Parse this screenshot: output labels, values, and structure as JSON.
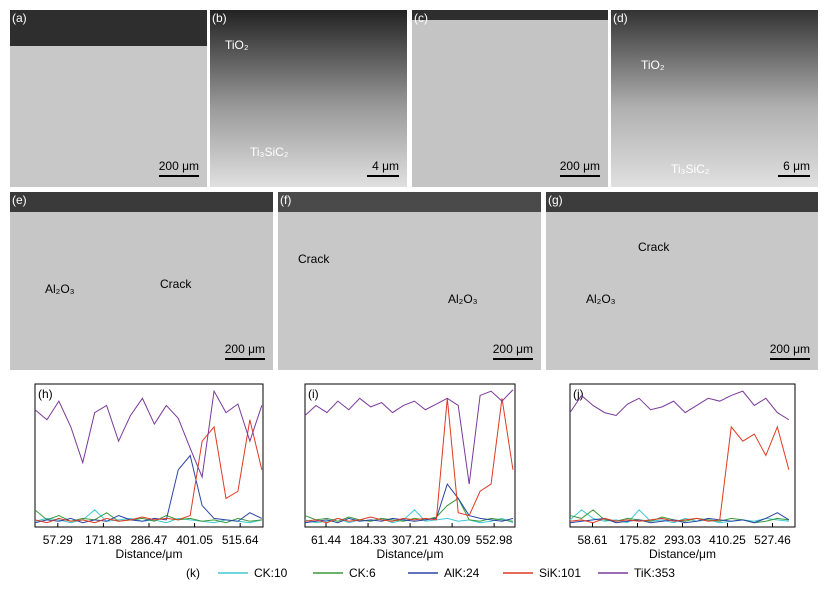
{
  "panels": [
    {
      "label": "(a)",
      "scale": "200 μm",
      "notes": []
    },
    {
      "label": "(b)",
      "scale": "4 μm",
      "notes": [
        "TiO₂",
        "Ti₃SiC₂"
      ]
    },
    {
      "label": "(c)",
      "scale": "200 μm",
      "notes": []
    },
    {
      "label": "(d)",
      "scale": "6 μm",
      "notes": [
        "TiO₂",
        "Ti₃SiC₂"
      ]
    },
    {
      "label": "(e)",
      "scale": "200 μm",
      "notes": [
        "Al₂O₃",
        "Crack"
      ]
    },
    {
      "label": "(f)",
      "scale": "200 μm",
      "notes": [
        "Crack",
        "Al₂O₃"
      ]
    },
    {
      "label": "(g)",
      "scale": "200 μm",
      "notes": [
        "Crack",
        "Al₂O₃"
      ]
    }
  ],
  "legend_label": "(k)",
  "chart_data": [
    {
      "type": "line",
      "title": "(h)",
      "xlabel": "Distance/μm",
      "xlim": [
        0,
        573
      ],
      "ylim": [
        0,
        100
      ],
      "xticks": [
        57.29,
        171.88,
        286.47,
        401.05,
        515.64
      ],
      "x": [
        0,
        30,
        60,
        90,
        120,
        150,
        180,
        210,
        240,
        270,
        300,
        330,
        360,
        390,
        420,
        450,
        480,
        510,
        540,
        570
      ],
      "series": [
        {
          "name": "CK:10",
          "color": "#3ec8d4",
          "values": [
            4,
            6,
            5,
            3,
            5,
            12,
            4,
            5,
            6,
            4,
            5,
            3,
            6,
            5,
            4,
            3,
            5,
            4,
            3,
            5
          ]
        },
        {
          "name": "CK:6",
          "color": "#3a9a3a",
          "values": [
            12,
            5,
            8,
            4,
            6,
            5,
            10,
            4,
            5,
            6,
            4,
            8,
            5,
            6,
            4,
            5,
            3,
            6,
            4,
            5
          ]
        },
        {
          "name": "AlK:24",
          "color": "#2a44a4",
          "values": [
            3,
            5,
            4,
            6,
            3,
            5,
            4,
            8,
            5,
            4,
            6,
            5,
            40,
            50,
            15,
            6,
            5,
            4,
            10,
            6
          ]
        },
        {
          "name": "SiK:101",
          "color": "#e03a22",
          "values": [
            5,
            3,
            6,
            4,
            5,
            3,
            6,
            4,
            5,
            7,
            5,
            6,
            5,
            8,
            60,
            70,
            20,
            25,
            75,
            40
          ]
        },
        {
          "name": "TiK:353",
          "color": "#7a3a9a",
          "values": [
            82,
            75,
            88,
            70,
            45,
            80,
            85,
            60,
            78,
            90,
            72,
            85,
            76,
            55,
            35,
            95,
            80,
            86,
            60,
            85
          ]
        }
      ]
    },
    {
      "type": "line",
      "title": "(i)",
      "xlabel": "Distance/μm",
      "xlim": [
        0,
        614
      ],
      "ylim": [
        0,
        100
      ],
      "xticks": [
        61.44,
        184.33,
        307.21,
        430.09,
        552.98
      ],
      "x": [
        0,
        32,
        64,
        96,
        128,
        160,
        192,
        224,
        256,
        288,
        320,
        352,
        384,
        416,
        448,
        480,
        512,
        544,
        576,
        608
      ],
      "series": [
        {
          "name": "CK:10",
          "color": "#3ec8d4",
          "values": [
            5,
            3,
            4,
            6,
            3,
            5,
            4,
            6,
            3,
            5,
            12,
            4,
            5,
            6,
            4,
            5,
            3,
            4,
            6,
            3
          ]
        },
        {
          "name": "CK:6",
          "color": "#3a9a3a",
          "values": [
            8,
            5,
            6,
            4,
            7,
            5,
            4,
            6,
            5,
            4,
            6,
            5,
            7,
            15,
            20,
            5,
            4,
            6,
            5,
            4
          ]
        },
        {
          "name": "AlK:24",
          "color": "#2a44a4",
          "values": [
            3,
            4,
            5,
            3,
            6,
            4,
            5,
            4,
            6,
            5,
            4,
            5,
            6,
            30,
            20,
            8,
            6,
            5,
            4,
            6
          ]
        },
        {
          "name": "SiK:101",
          "color": "#e03a22",
          "values": [
            4,
            5,
            3,
            6,
            4,
            5,
            7,
            5,
            4,
            6,
            5,
            6,
            5,
            90,
            10,
            8,
            25,
            30,
            90,
            40
          ]
        },
        {
          "name": "TiK:353",
          "color": "#7a3a9a",
          "values": [
            78,
            85,
            80,
            88,
            82,
            90,
            84,
            87,
            80,
            85,
            88,
            82,
            86,
            90,
            85,
            30,
            92,
            95,
            88,
            96
          ]
        }
      ]
    },
    {
      "type": "line",
      "title": "(j)",
      "xlabel": "Distance/μm",
      "xlim": [
        0,
        586
      ],
      "ylim": [
        0,
        100
      ],
      "xticks": [
        58.61,
        175.82,
        293.03,
        410.25,
        527.46
      ],
      "x": [
        0,
        30,
        60,
        90,
        120,
        150,
        180,
        210,
        240,
        270,
        300,
        330,
        360,
        390,
        420,
        450,
        480,
        510,
        540,
        570
      ],
      "series": [
        {
          "name": "CK:10",
          "color": "#3ec8d4",
          "values": [
            5,
            12,
            6,
            4,
            5,
            3,
            12,
            4,
            5,
            3,
            6,
            4,
            5,
            3,
            4,
            5,
            4,
            6,
            5,
            4
          ]
        },
        {
          "name": "CK:6",
          "color": "#3a9a3a",
          "values": [
            8,
            6,
            12,
            5,
            4,
            6,
            5,
            4,
            7,
            5,
            4,
            6,
            5,
            4,
            6,
            5,
            3,
            4,
            6,
            5
          ]
        },
        {
          "name": "AlK:24",
          "color": "#2a44a4",
          "values": [
            3,
            4,
            5,
            6,
            3,
            4,
            5,
            3,
            4,
            5,
            3,
            4,
            6,
            5,
            4,
            5,
            3,
            6,
            10,
            5
          ]
        },
        {
          "name": "SiK:101",
          "color": "#e03a22",
          "values": [
            4,
            5,
            3,
            6,
            4,
            5,
            4,
            5,
            6,
            4,
            5,
            6,
            4,
            5,
            70,
            60,
            65,
            50,
            70,
            40
          ]
        },
        {
          "name": "TiK:353",
          "color": "#7a3a9a",
          "values": [
            80,
            92,
            85,
            80,
            78,
            86,
            90,
            82,
            84,
            88,
            80,
            85,
            90,
            88,
            92,
            95,
            85,
            90,
            80,
            75
          ]
        }
      ]
    }
  ]
}
